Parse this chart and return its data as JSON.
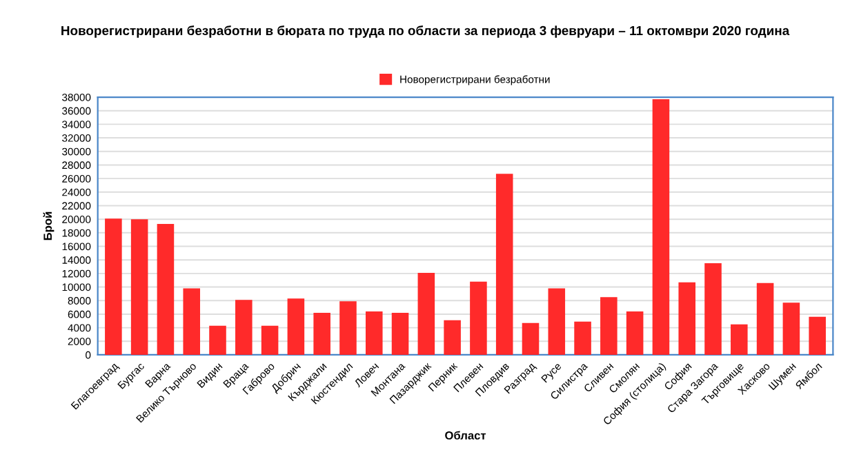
{
  "chart_data": {
    "type": "bar",
    "title": "Новорегистрирани безработни в бюрата по труда по области за периода 3 февруари – 11 октомври 2020 година",
    "xlabel": "Област",
    "ylabel": "Брой",
    "categories": [
      "Благоевград",
      "Бургас",
      "Варна",
      "Велико Търново",
      "Видин",
      "Враца",
      "Габрово",
      "Добрич",
      "Кърджали",
      "Кюстендил",
      "Ловеч",
      "Монтана",
      "Пазарджик",
      "Перник",
      "Плевен",
      "Пловдив",
      "Разград",
      "Русе",
      "Силистра",
      "Сливен",
      "Смолян",
      "София (столица)",
      "София",
      "Стара Загора",
      "Търговище",
      "Хасково",
      "Шумен",
      "Ямбол"
    ],
    "series": [
      {
        "name": "Новорегистрирани безработни",
        "color": "#ff2a2a",
        "values": [
          20100,
          20000,
          19300,
          9800,
          4300,
          8100,
          4300,
          8300,
          6200,
          7900,
          6400,
          6200,
          12100,
          5100,
          10800,
          26700,
          4700,
          9800,
          4900,
          8500,
          6400,
          37700,
          10700,
          13500,
          4500,
          10600,
          7700,
          5600
        ]
      }
    ],
    "ylim": [
      0,
      38000
    ],
    "yticks": [
      0,
      2000,
      4000,
      6000,
      8000,
      10000,
      12000,
      14000,
      16000,
      18000,
      20000,
      22000,
      24000,
      26000,
      28000,
      30000,
      32000,
      34000,
      36000,
      38000
    ],
    "grid": "y",
    "legend": "top"
  }
}
